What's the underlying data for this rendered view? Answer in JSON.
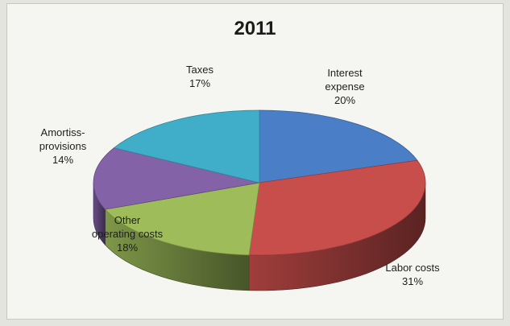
{
  "chart_data": {
    "type": "pie",
    "title": "2011",
    "three_d": true,
    "legend": "none",
    "slices": [
      {
        "label_lines": [
          "Interest",
          "expense"
        ],
        "value": 20,
        "pct_label": "20%",
        "color": "#4a7ec6"
      },
      {
        "label_lines": [
          "Labor costs"
        ],
        "value": 31,
        "pct_label": "31%",
        "color": "#c84e4b"
      },
      {
        "label_lines": [
          "Other",
          "operating costs"
        ],
        "value": 18,
        "pct_label": "18%",
        "color": "#9ebd5a"
      },
      {
        "label_lines": [
          "Amortiss-",
          "provisions"
        ],
        "value": 14,
        "pct_label": "14%",
        "color": "#8362a8"
      },
      {
        "label_lines": [
          "Taxes"
        ],
        "value": 17,
        "pct_label": "17%",
        "color": "#41aec9"
      }
    ]
  }
}
